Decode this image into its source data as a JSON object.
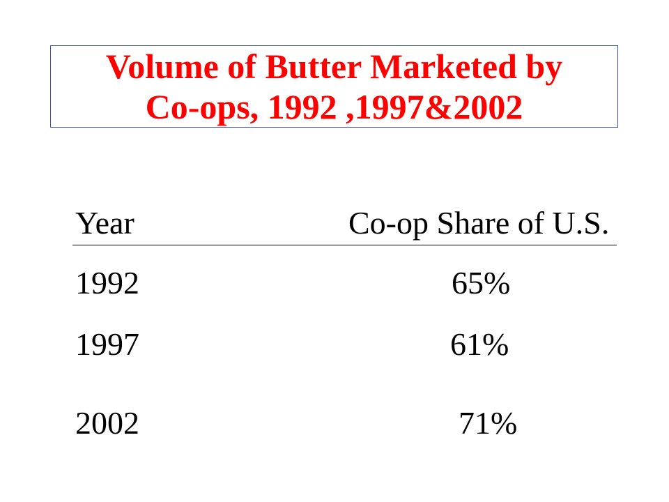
{
  "title": {
    "line1": "Volume of Butter Marketed by",
    "line2": "Co-ops, 1992 ,1997&2002",
    "color": "#ff0000"
  },
  "table": {
    "headers": [
      "Year",
      "Co-op Share of U.S."
    ],
    "rows": [
      [
        "1992",
        "65%"
      ],
      [
        "1997",
        "61%"
      ],
      [
        "2002",
        "71%"
      ]
    ]
  }
}
